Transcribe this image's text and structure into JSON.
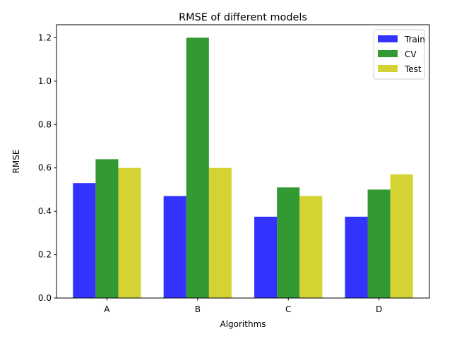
{
  "chart_data": {
    "type": "bar",
    "title": "RMSE of different models",
    "xlabel": "Algorithms",
    "ylabel": "RMSE",
    "categories": [
      "A",
      "B",
      "C",
      "D"
    ],
    "ylim": [
      0,
      1.26
    ],
    "yticks": [
      "0.0",
      "0.2",
      "0.4",
      "0.6",
      "0.8",
      "1.0",
      "1.2"
    ],
    "grid": false,
    "legend_position": "top-right",
    "series": [
      {
        "name": "Train",
        "color": "#0000ff",
        "values": [
          0.53,
          0.47,
          0.375,
          0.375
        ]
      },
      {
        "name": "CV",
        "color": "#008000",
        "values": [
          0.64,
          1.2,
          0.51,
          0.5
        ]
      },
      {
        "name": "Test",
        "color": "#c8c800",
        "values": [
          0.6,
          0.6,
          0.47,
          0.57
        ]
      }
    ]
  }
}
